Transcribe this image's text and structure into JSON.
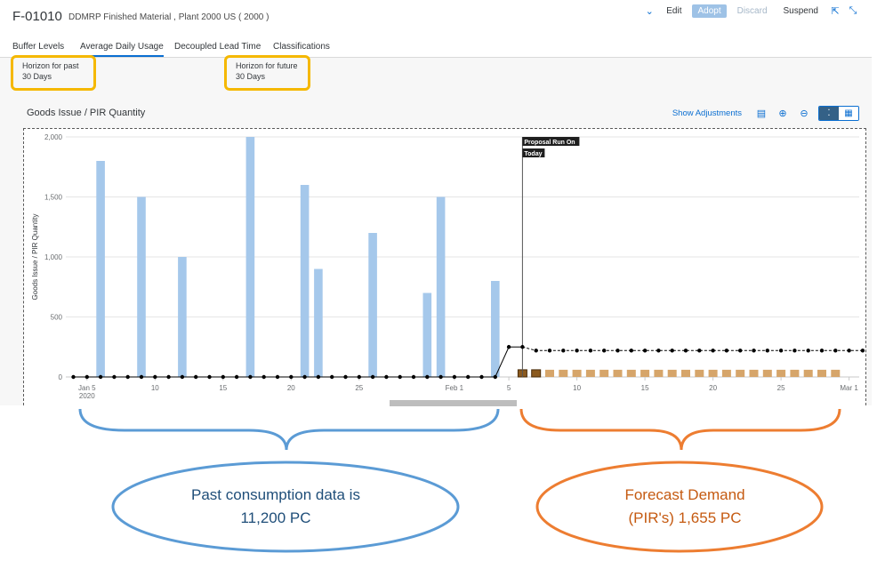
{
  "header": {
    "object_id": "F-01010",
    "description": "DDMRP Finished Material , Plant 2000 US ( 2000 )",
    "actions": {
      "edit": "Edit",
      "adopt": "Adopt",
      "discard": "Discard",
      "suspend": "Suspend"
    },
    "icons": [
      "chevron-down-icon",
      "share-icon",
      "exit-fullscreen-icon"
    ]
  },
  "tabs": [
    {
      "label": "Buffer Levels",
      "active": false
    },
    {
      "label": "Average Daily Usage",
      "active": true
    },
    {
      "label": "Decoupled Lead Time",
      "active": false
    },
    {
      "label": "Classifications",
      "active": false
    }
  ],
  "horizon": {
    "past_label": "Horizon for past",
    "past_value": "30 Days",
    "future_label": "Horizon for future",
    "future_value": "30 Days"
  },
  "chart_section": {
    "title": "Goods Issue / PIR Quantity",
    "show_adjustments": "Show Adjustments",
    "icons": [
      "table-settings-icon",
      "zoom-in-icon",
      "zoom-out-icon",
      "chart-view-icon",
      "table-view-icon"
    ]
  },
  "chart_data": {
    "type": "bar",
    "ylabel": "Goods Issue / PIR Quantity",
    "ylim": [
      0,
      2000
    ],
    "yticks": [
      0,
      500,
      1000,
      1500,
      2000
    ],
    "ytick_labels": [
      "0",
      "500",
      "1,000",
      "1,500",
      "2,000"
    ],
    "xticks": [
      {
        "day": 5,
        "label": "Jan 5",
        "sublabel": "2020"
      },
      {
        "day": 10,
        "label": "10"
      },
      {
        "day": 15,
        "label": "15"
      },
      {
        "day": 20,
        "label": "20"
      },
      {
        "day": 25,
        "label": "25"
      },
      {
        "day": 32,
        "label": "Feb 1"
      },
      {
        "day": 36,
        "label": "5"
      },
      {
        "day": 41,
        "label": "10"
      },
      {
        "day": 46,
        "label": "15"
      },
      {
        "day": 51,
        "label": "20"
      },
      {
        "day": 56,
        "label": "25"
      },
      {
        "day": 61,
        "label": "Mar 1"
      }
    ],
    "goods_issue": [
      {
        "date": "Jan 6",
        "value": 1800
      },
      {
        "date": "Jan 9",
        "value": 1500
      },
      {
        "date": "Jan 12",
        "value": 1000
      },
      {
        "date": "Jan 17",
        "value": 2000
      },
      {
        "date": "Jan 21",
        "value": 1600
      },
      {
        "date": "Jan 22",
        "value": 900
      },
      {
        "date": "Jan 26",
        "value": 1200
      },
      {
        "date": "Jan 30",
        "value": 700
      },
      {
        "date": "Jan 31",
        "value": 1500
      },
      {
        "date": "Feb 4",
        "value": 800
      }
    ],
    "pir": {
      "from": "Feb 6",
      "to": "Feb 29",
      "value": 60
    },
    "adu_line": {
      "past": 0,
      "peak": 250,
      "future": 220
    },
    "marker": {
      "date": "Feb 6",
      "label_1": "Proposal Run On",
      "label_2": "Today"
    },
    "colors": {
      "goods_issue": "#a5c8eb",
      "pir": "#d6a56a",
      "pir_selected": "#8b5a1e",
      "adu_line": "#000000"
    }
  },
  "annotations": {
    "past_bubble": {
      "line1": "Past consumption data is",
      "line2": "11,200 PC",
      "color": "#5b9bd5",
      "text_color": "#1f4e79"
    },
    "future_bubble": {
      "line1": "Forecast Demand",
      "line2": "(PIR's) 1,655 PC",
      "color": "#ed7d31",
      "text_color": "#c55a11"
    },
    "highlight_color": "#f5b800"
  }
}
